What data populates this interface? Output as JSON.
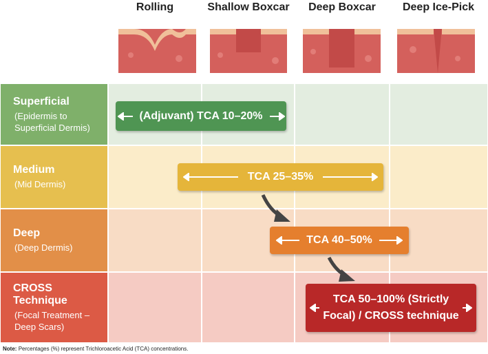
{
  "columns": [
    "Rolling",
    "Shallow Boxcar",
    "Deep Boxcar",
    "Deep Ice-Pick"
  ],
  "rows": [
    {
      "title": "Superficial",
      "subtitle": "(Epidermis to Superficial Dermis)"
    },
    {
      "title": "Medium",
      "subtitle": "(Mid Dermis)"
    },
    {
      "title": "Deep",
      "subtitle": "(Deep Dermis)"
    },
    {
      "title": "CROSS Technique",
      "subtitle": "(Focal Treatment – Deep Scars)"
    }
  ],
  "treatments": [
    "(Adjuvant) TCA 10–20%",
    "TCA 25–35%",
    "TCA 40–50%",
    "TCA 50–100% (Strictly Focal) / CROSS technique"
  ],
  "note": {
    "label": "Note:",
    "text": "Percentages (%) represent Trichloroacetic Acid (TCA) concentrations."
  }
}
